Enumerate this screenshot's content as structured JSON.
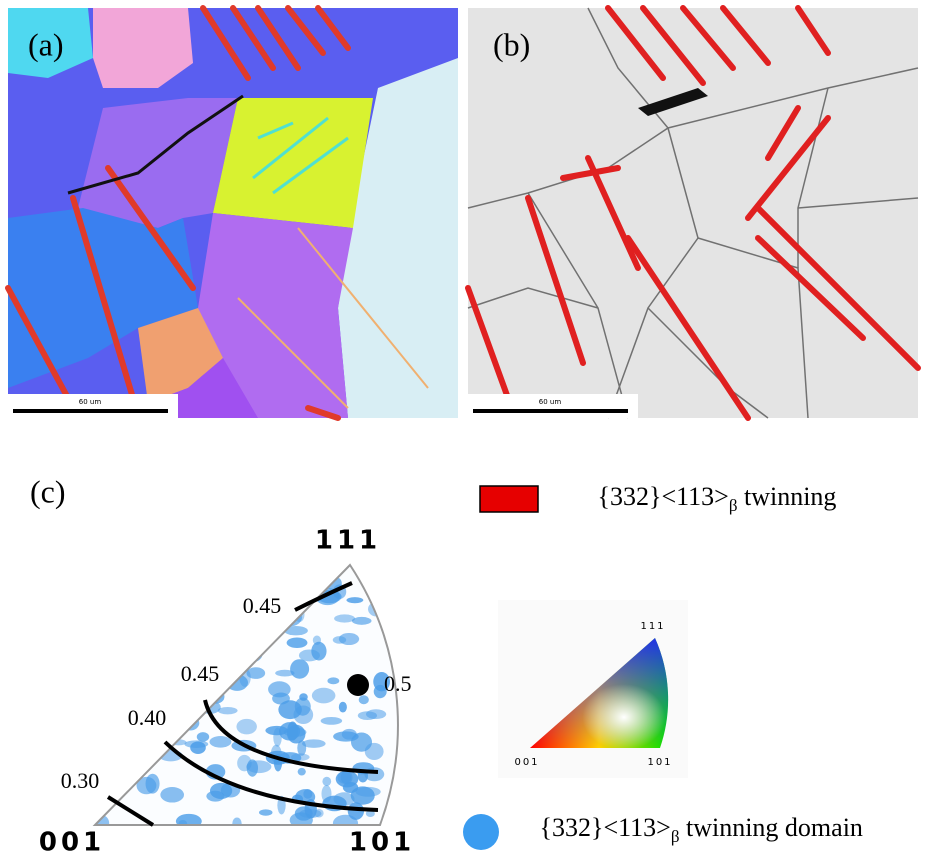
{
  "panels": [
    {
      "label": "(a)",
      "scale_bar": "60 um"
    },
    {
      "label": "(b)",
      "scale_bar": "60 um"
    }
  ],
  "panel_c": {
    "label": "(c)",
    "corners": [
      "111",
      "001",
      "101"
    ],
    "contours": [
      "0.45",
      "0.45",
      "0.40",
      "0.30"
    ],
    "point_label": "0.5"
  },
  "legend": {
    "twinning": {
      "text": "{332}<113>",
      "subscript": "β",
      "suffix": " twinning"
    },
    "domain": {
      "text": "{332}<113>",
      "subscript": "β",
      "suffix": " twinning domain"
    }
  },
  "color_key": {
    "corners": [
      "111",
      "001",
      "101"
    ]
  }
}
